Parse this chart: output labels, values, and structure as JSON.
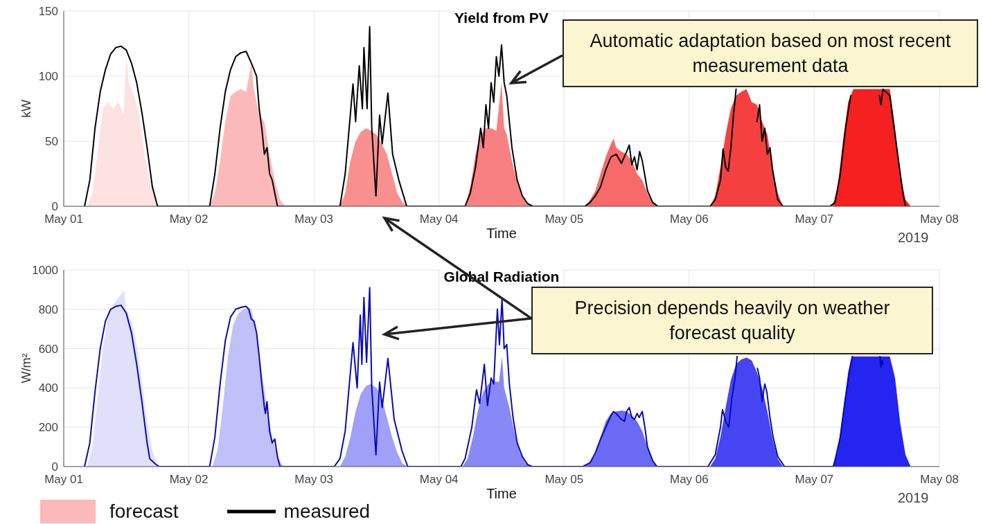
{
  "chart_data": [
    {
      "type": "line",
      "title": "Yield from PV",
      "xlabel": "Time",
      "ylabel": "kW",
      "xlim": [
        "2019-05-01",
        "2019-05-08"
      ],
      "xticks": [
        {
          "value": "2019-05-01",
          "label": "May 01"
        },
        {
          "value": "2019-05-02",
          "label": "May 02"
        },
        {
          "value": "2019-05-03",
          "label": "May 03"
        },
        {
          "value": "2019-05-04",
          "label": "May 04"
        },
        {
          "value": "2019-05-05",
          "label": "May 05"
        },
        {
          "value": "2019-05-06",
          "label": "May 06"
        },
        {
          "value": "2019-05-07",
          "label": "May 07"
        },
        {
          "value": "2019-05-08",
          "label": "May 08"
        }
      ],
      "ylim": [
        0,
        150
      ],
      "yticks": [
        0,
        50,
        100,
        150
      ],
      "grid": true,
      "legend": "bottom left",
      "line_style": "solid",
      "marker": "none",
      "annotations": [
        "2019",
        "Automatic adaptation based on most recent measurement data"
      ],
      "series": [
        {
          "type": "area",
          "color": "#fde2e2",
          "x": [
            "2019-05-01T04:30",
            "2019-05-01T05:30",
            "2019-05-01T06:30",
            "2019-05-01T07:30",
            "2019-05-01T08:30",
            "2019-05-01T09:30",
            "2019-05-01T10:30",
            "2019-05-01T11:30",
            "2019-05-01T12:00",
            "2019-05-01T12:30",
            "2019-05-01T13:30",
            "2019-05-01T14:30",
            "2019-05-01T15:30",
            "2019-05-01T16:30",
            "2019-05-01T17:30",
            "2019-05-01T18:30"
          ],
          "values": [
            0,
            10,
            40,
            75,
            80,
            75,
            80,
            70,
            115,
            95,
            85,
            70,
            40,
            20,
            5,
            0
          ]
        },
        {
          "type": "area",
          "name": "forecast",
          "color": "#fbb9b9",
          "x": [
            "2019-05-02T04:00",
            "2019-05-02T05:00",
            "2019-05-02T06:00",
            "2019-05-02T07:00",
            "2019-05-02T08:00",
            "2019-05-02T09:00",
            "2019-05-02T10:00",
            "2019-05-02T11:00",
            "2019-05-02T12:00",
            "2019-05-02T12:30",
            "2019-05-02T13:30",
            "2019-05-02T14:30",
            "2019-05-02T15:30",
            "2019-05-02T16:30",
            "2019-05-02T17:30",
            "2019-05-02T18:30"
          ],
          "values": [
            0,
            10,
            35,
            65,
            85,
            88,
            90,
            88,
            110,
            90,
            70,
            65,
            40,
            20,
            5,
            0
          ]
        },
        {
          "type": "area",
          "color": "#f99090",
          "x": [
            "2019-05-03T05:00",
            "2019-05-03T06:00",
            "2019-05-03T07:00",
            "2019-05-03T08:00",
            "2019-05-03T09:00",
            "2019-05-03T10:00",
            "2019-05-03T11:00",
            "2019-05-03T12:00",
            "2019-05-03T13:00",
            "2019-05-03T14:00",
            "2019-05-03T15:00",
            "2019-05-03T16:00",
            "2019-05-03T17:00",
            "2019-05-03T18:00"
          ],
          "values": [
            0,
            10,
            35,
            50,
            57,
            60,
            58,
            55,
            48,
            40,
            25,
            10,
            3,
            0
          ]
        },
        {
          "type": "area",
          "color": "#f98080",
          "x": [
            "2019-05-04T05:00",
            "2019-05-04T06:00",
            "2019-05-04T07:00",
            "2019-05-04T08:00",
            "2019-05-04T09:00",
            "2019-05-04T10:00",
            "2019-05-04T11:00",
            "2019-05-04T12:00",
            "2019-05-04T12:30",
            "2019-05-04T13:00",
            "2019-05-04T14:00",
            "2019-05-04T15:00",
            "2019-05-04T16:00",
            "2019-05-04T17:00",
            "2019-05-04T18:00"
          ],
          "values": [
            0,
            15,
            40,
            55,
            60,
            60,
            58,
            95,
            60,
            55,
            35,
            18,
            8,
            3,
            0
          ]
        },
        {
          "type": "area",
          "color": "#f86a6a",
          "x": [
            "2019-05-05T04:00",
            "2019-05-05T05:00",
            "2019-05-05T06:00",
            "2019-05-05T07:00",
            "2019-05-05T08:00",
            "2019-05-05T09:00",
            "2019-05-05T09:30",
            "2019-05-05T10:00",
            "2019-05-05T11:00",
            "2019-05-05T12:00",
            "2019-05-05T13:00",
            "2019-05-05T14:00",
            "2019-05-05T15:00",
            "2019-05-05T16:00",
            "2019-05-05T17:00",
            "2019-05-05T18:00"
          ],
          "values": [
            0,
            5,
            12,
            25,
            38,
            48,
            52,
            45,
            42,
            40,
            35,
            25,
            20,
            10,
            3,
            0
          ]
        },
        {
          "type": "area",
          "color": "#f54040",
          "x": [
            "2019-05-06T04:00",
            "2019-05-06T05:00",
            "2019-05-06T06:00",
            "2019-05-06T07:00",
            "2019-05-06T08:00",
            "2019-05-06T09:00",
            "2019-05-06T10:00",
            "2019-05-06T11:00",
            "2019-05-06T12:00",
            "2019-05-06T13:00",
            "2019-05-06T14:00",
            "2019-05-06T15:00",
            "2019-05-06T16:00",
            "2019-05-06T17:00",
            "2019-05-06T18:00"
          ],
          "values": [
            0,
            8,
            30,
            55,
            75,
            85,
            88,
            90,
            80,
            78,
            65,
            55,
            30,
            10,
            0
          ]
        },
        {
          "type": "area",
          "color": "#f52020",
          "x": [
            "2019-05-07T03:30",
            "2019-05-07T04:30",
            "2019-05-07T05:30",
            "2019-05-07T06:30",
            "2019-05-07T07:30",
            "2019-05-07T08:30",
            "2019-05-07T13:30",
            "2019-05-07T14:30",
            "2019-05-07T15:30",
            "2019-05-07T16:30",
            "2019-05-07T17:30",
            "2019-05-07T18:30"
          ],
          "values": [
            0,
            15,
            50,
            80,
            90,
            90,
            90,
            90,
            60,
            25,
            5,
            0
          ]
        },
        {
          "name": "measured",
          "color": "#000000",
          "x": [
            "2019-05-01T04:00",
            "2019-05-01T05:00",
            "2019-05-01T06:00",
            "2019-05-01T07:00",
            "2019-05-01T08:00",
            "2019-05-01T09:00",
            "2019-05-01T10:00",
            "2019-05-01T11:00",
            "2019-05-01T12:00",
            "2019-05-01T13:00",
            "2019-05-01T14:00",
            "2019-05-01T15:00",
            "2019-05-01T16:00",
            "2019-05-01T17:00",
            "2019-05-01T18:00",
            "2019-05-02T04:00",
            "2019-05-02T05:00",
            "2019-05-02T06:00",
            "2019-05-02T07:00",
            "2019-05-02T08:00",
            "2019-05-02T09:00",
            "2019-05-02T10:00",
            "2019-05-02T11:00",
            "2019-05-02T12:00",
            "2019-05-02T13:00",
            "2019-05-02T13:30",
            "2019-05-02T14:00",
            "2019-05-02T14:30",
            "2019-05-02T15:00",
            "2019-05-02T15:30",
            "2019-05-02T16:00",
            "2019-05-02T17:00",
            "2019-05-03T05:00",
            "2019-05-03T06:00",
            "2019-05-03T07:30",
            "2019-05-03T08:00",
            "2019-05-03T08:42",
            "2019-05-03T09:18",
            "2019-05-03T09:36",
            "2019-05-03T10:12",
            "2019-05-03T10:42",
            "2019-05-03T11:06",
            "2019-05-03T11:54",
            "2019-05-03T12:36",
            "2019-05-03T13:06",
            "2019-05-03T14:12",
            "2019-05-03T15:06",
            "2019-05-03T16:18",
            "2019-05-03T17:48",
            "2019-05-04T05:00",
            "2019-05-04T06:00",
            "2019-05-04T07:00",
            "2019-05-04T07:30",
            "2019-05-04T08:00",
            "2019-05-04T08:30",
            "2019-05-04T09:00",
            "2019-05-04T09:30",
            "2019-05-04T10:00",
            "2019-05-04T10:30",
            "2019-05-04T11:00",
            "2019-05-04T11:30",
            "2019-05-04T12:00",
            "2019-05-04T12:30",
            "2019-05-04T13:00",
            "2019-05-04T14:00",
            "2019-05-04T15:00",
            "2019-05-04T16:00",
            "2019-05-04T17:00",
            "2019-05-04T18:00",
            "2019-05-05T04:00",
            "2019-05-05T05:00",
            "2019-05-05T06:00",
            "2019-05-05T07:00",
            "2019-05-05T08:00",
            "2019-05-05T09:00",
            "2019-05-05T10:00",
            "2019-05-05T11:00",
            "2019-05-05T12:00",
            "2019-05-05T12:30",
            "2019-05-05T13:00",
            "2019-05-05T13:30",
            "2019-05-05T14:00",
            "2019-05-05T14:30",
            "2019-05-05T15:00",
            "2019-05-05T16:00",
            "2019-05-05T17:00",
            "2019-05-05T18:00",
            "2019-05-06T04:00",
            "2019-05-06T05:00",
            "2019-05-06T06:00",
            "2019-05-06T06:30",
            "2019-05-06T07:00",
            "2019-05-06T07:30",
            "2019-05-06T08:00",
            "2019-05-06T08:30",
            "2019-05-06T09:00",
            "2019-05-06T10:00",
            "2019-05-06T12:00",
            "2019-05-06T13:00",
            "2019-05-06T13:30",
            "2019-05-06T14:00",
            "2019-05-06T14:30",
            "2019-05-06T15:00",
            "2019-05-06T15:30",
            "2019-05-06T16:00",
            "2019-05-06T17:00",
            "2019-05-06T18:00",
            "2019-05-07T03:00",
            "2019-05-07T04:00",
            "2019-05-07T05:00",
            "2019-05-07T06:00",
            "2019-05-07T07:00",
            "2019-05-07T08:00",
            "2019-05-07T12:00",
            "2019-05-07T12:30",
            "2019-05-07T12:48",
            "2019-05-07T13:12",
            "2019-05-07T14:30",
            "2019-05-07T15:00",
            "2019-05-07T16:00",
            "2019-05-07T17:00",
            "2019-05-07T17:30"
          ],
          "values": [
            0,
            20,
            60,
            88,
            105,
            117,
            122,
            123,
            120,
            110,
            95,
            72,
            45,
            15,
            0,
            0,
            25,
            60,
            88,
            105,
            115,
            118,
            119,
            110,
            100,
            75,
            60,
            40,
            45,
            25,
            20,
            0,
            0,
            25,
            94,
            65,
            108,
            75,
            122,
            75,
            138,
            60,
            8,
            70,
            48,
            87,
            40,
            20,
            0,
            0,
            10,
            30,
            45,
            60,
            45,
            78,
            60,
            95,
            80,
            115,
            100,
            124,
            95,
            85,
            45,
            20,
            8,
            2,
            0,
            0,
            3,
            8,
            15,
            28,
            38,
            40,
            33,
            42,
            47,
            32,
            38,
            28,
            42,
            35,
            12,
            3,
            0,
            0,
            5,
            20,
            44,
            30,
            27,
            45,
            70,
            90,
            null,
            null,
            65,
            78,
            50,
            60,
            40,
            45,
            28,
            5,
            0,
            0,
            3,
            25,
            60,
            85,
            null,
            null,
            85,
            78,
            90,
            85,
            70,
            40,
            10,
            0
          ]
        }
      ]
    },
    {
      "type": "line",
      "title": "Global Radiation",
      "xlabel": "Time",
      "ylabel": "W/m²",
      "xlim": [
        "2019-05-01",
        "2019-05-08"
      ],
      "xticks": [
        {
          "value": "2019-05-01",
          "label": "May 01"
        },
        {
          "value": "2019-05-02",
          "label": "May 02"
        },
        {
          "value": "2019-05-03",
          "label": "May 03"
        },
        {
          "value": "2019-05-04",
          "label": "May 04"
        },
        {
          "value": "2019-05-05",
          "label": "May 05"
        },
        {
          "value": "2019-05-06",
          "label": "May 06"
        },
        {
          "value": "2019-05-07",
          "label": "May 07"
        },
        {
          "value": "2019-05-08",
          "label": "May 08"
        }
      ],
      "ylim": [
        0,
        1000
      ],
      "yticks": [
        0,
        200,
        400,
        600,
        800,
        1000
      ],
      "grid": true,
      "line_style": "solid",
      "marker": "none",
      "annotations": [
        "2019",
        "Precision depends heavily on weather forecast quality"
      ],
      "series": [
        {
          "type": "area",
          "color": "#e0e0fb",
          "x": [
            "2019-05-01T04:30",
            "2019-05-01T05:30",
            "2019-05-01T06:30",
            "2019-05-01T07:30",
            "2019-05-01T08:30",
            "2019-05-01T09:30",
            "2019-05-01T10:30",
            "2019-05-01T11:12",
            "2019-05-01T11:30",
            "2019-05-01T12:00",
            "2019-05-01T13:00",
            "2019-05-01T14:00",
            "2019-05-01T15:00",
            "2019-05-01T16:00",
            "2019-05-01T17:00",
            "2019-05-01T18:00",
            "2019-05-01T18:30"
          ],
          "values": [
            0,
            100,
            350,
            600,
            760,
            820,
            860,
            880,
            900,
            800,
            740,
            620,
            430,
            230,
            80,
            10,
            0
          ]
        },
        {
          "type": "area",
          "color": "#c0c0fa",
          "x": [
            "2019-05-02T04:30",
            "2019-05-02T05:30",
            "2019-05-02T06:30",
            "2019-05-02T07:30",
            "2019-05-02T08:30",
            "2019-05-02T09:30",
            "2019-05-02T10:30",
            "2019-05-02T11:30",
            "2019-05-02T12:00",
            "2019-05-02T13:00",
            "2019-05-02T14:00",
            "2019-05-02T15:00",
            "2019-05-02T16:00",
            "2019-05-02T17:00",
            "2019-05-02T18:00",
            "2019-05-02T18:30"
          ],
          "values": [
            0,
            80,
            300,
            560,
            720,
            780,
            800,
            810,
            800,
            680,
            480,
            300,
            150,
            50,
            5,
            0
          ]
        },
        {
          "type": "area",
          "color": "#a0a0f8",
          "x": [
            "2019-05-03T05:00",
            "2019-05-03T06:00",
            "2019-05-03T07:00",
            "2019-05-03T08:00",
            "2019-05-03T09:00",
            "2019-05-03T10:00",
            "2019-05-03T11:00",
            "2019-05-03T12:00",
            "2019-05-03T13:00",
            "2019-05-03T14:00",
            "2019-05-03T15:00",
            "2019-05-03T16:00",
            "2019-05-03T17:00",
            "2019-05-03T18:00"
          ],
          "values": [
            0,
            50,
            150,
            280,
            370,
            410,
            420,
            400,
            350,
            250,
            150,
            70,
            15,
            0
          ]
        },
        {
          "type": "area",
          "color": "#8888f7",
          "x": [
            "2019-05-04T04:30",
            "2019-05-04T05:30",
            "2019-05-04T06:30",
            "2019-05-04T07:30",
            "2019-05-04T08:30",
            "2019-05-04T09:30",
            "2019-05-04T10:30",
            "2019-05-04T11:30",
            "2019-05-04T12:06",
            "2019-05-04T12:30",
            "2019-05-04T13:30",
            "2019-05-04T14:30",
            "2019-05-04T15:30",
            "2019-05-04T16:30",
            "2019-05-04T17:30"
          ],
          "values": [
            0,
            40,
            150,
            290,
            380,
            420,
            435,
            430,
            560,
            400,
            300,
            170,
            70,
            20,
            0
          ]
        },
        {
          "type": "area",
          "color": "#6a6af5",
          "x": [
            "2019-05-05T04:00",
            "2019-05-05T05:00",
            "2019-05-05T06:00",
            "2019-05-05T07:00",
            "2019-05-05T08:00",
            "2019-05-05T09:00",
            "2019-05-05T10:00",
            "2019-05-05T11:00",
            "2019-05-05T12:00",
            "2019-05-05T13:00",
            "2019-05-05T14:00",
            "2019-05-05T15:00",
            "2019-05-05T16:00",
            "2019-05-05T17:00",
            "2019-05-05T18:00"
          ],
          "values": [
            0,
            20,
            70,
            150,
            230,
            270,
            280,
            285,
            280,
            260,
            230,
            180,
            100,
            30,
            0
          ]
        },
        {
          "type": "area",
          "color": "#4545f3",
          "x": [
            "2019-05-06T04:00",
            "2019-05-06T05:00",
            "2019-05-06T06:00",
            "2019-05-06T07:00",
            "2019-05-06T08:00",
            "2019-05-06T09:00",
            "2019-05-06T10:00",
            "2019-05-06T11:00",
            "2019-05-06T12:00",
            "2019-05-06T13:00",
            "2019-05-06T14:00",
            "2019-05-06T15:00",
            "2019-05-06T16:00",
            "2019-05-06T17:00",
            "2019-05-06T18:00"
          ],
          "values": [
            0,
            40,
            150,
            300,
            440,
            520,
            545,
            555,
            540,
            480,
            400,
            280,
            140,
            40,
            0
          ]
        },
        {
          "type": "area",
          "color": "#2525f2",
          "x": [
            "2019-05-07T03:30",
            "2019-05-07T04:30",
            "2019-05-07T05:30",
            "2019-05-07T06:30",
            "2019-05-07T07:12",
            "2019-05-07T08:00",
            "2019-05-07T14:30",
            "2019-05-07T15:30",
            "2019-05-07T16:30",
            "2019-05-07T17:30",
            "2019-05-07T18:30"
          ],
          "values": [
            0,
            80,
            280,
            480,
            560,
            560,
            560,
            450,
            220,
            60,
            0
          ]
        },
        {
          "color": "#0a0ab4",
          "x": [
            "2019-05-01T04:00",
            "2019-05-01T05:00",
            "2019-05-01T06:00",
            "2019-05-01T07:00",
            "2019-05-01T08:00",
            "2019-05-01T09:00",
            "2019-05-01T10:00",
            "2019-05-01T11:00",
            "2019-05-01T12:00",
            "2019-05-01T13:00",
            "2019-05-01T14:00",
            "2019-05-01T15:00",
            "2019-05-01T16:00",
            "2019-05-01T16:30",
            "2019-05-01T17:30",
            "2019-05-01T18:18",
            "2019-05-02T04:00",
            "2019-05-02T05:00",
            "2019-05-02T06:00",
            "2019-05-02T07:00",
            "2019-05-02T08:00",
            "2019-05-02T09:00",
            "2019-05-02T10:00",
            "2019-05-02T11:00",
            "2019-05-02T11:30",
            "2019-05-02T12:00",
            "2019-05-02T12:30",
            "2019-05-02T13:00",
            "2019-05-02T13:30",
            "2019-05-02T14:00",
            "2019-05-02T14:30",
            "2019-05-02T14:42",
            "2019-05-02T15:00",
            "2019-05-02T15:30",
            "2019-05-02T16:00",
            "2019-05-02T16:30",
            "2019-05-02T17:00",
            "2019-05-02T17:30",
            "2019-05-03T03:54",
            "2019-05-03T05:00",
            "2019-05-03T06:00",
            "2019-05-03T07:30",
            "2019-05-03T08:18",
            "2019-05-03T08:54",
            "2019-05-03T09:12",
            "2019-05-03T09:36",
            "2019-05-03T10:06",
            "2019-05-03T10:42",
            "2019-05-03T11:06",
            "2019-05-03T11:54",
            "2019-05-03T12:36",
            "2019-05-03T13:06",
            "2019-05-03T14:12",
            "2019-05-03T15:24",
            "2019-05-03T16:54",
            "2019-05-03T18:00",
            "2019-05-04T04:12",
            "2019-05-04T05:00",
            "2019-05-04T06:18",
            "2019-05-04T07:12",
            "2019-05-04T07:48",
            "2019-05-04T08:42",
            "2019-05-04T09:18",
            "2019-05-04T10:00",
            "2019-05-04T10:30",
            "2019-05-04T11:12",
            "2019-05-04T11:36",
            "2019-05-04T12:06",
            "2019-05-04T12:30",
            "2019-05-04T13:00",
            "2019-05-04T13:30",
            "2019-05-04T14:12",
            "2019-05-04T15:00",
            "2019-05-04T16:00",
            "2019-05-04T17:00",
            "2019-05-04T17:54",
            "2019-05-05T03:36",
            "2019-05-05T05:00",
            "2019-05-05T06:00",
            "2019-05-05T07:00",
            "2019-05-05T08:00",
            "2019-05-05T09:00",
            "2019-05-05T09:30",
            "2019-05-05T10:00",
            "2019-05-05T11:00",
            "2019-05-05T11:36",
            "2019-05-05T12:00",
            "2019-05-05T12:30",
            "2019-05-05T13:00",
            "2019-05-05T13:30",
            "2019-05-05T14:00",
            "2019-05-05T14:24",
            "2019-05-05T15:00",
            "2019-05-05T15:30",
            "2019-05-05T16:00",
            "2019-05-05T17:00",
            "2019-05-05T17:48",
            "2019-05-06T03:36",
            "2019-05-06T05:00",
            "2019-05-06T06:00",
            "2019-05-06T06:24",
            "2019-05-06T07:00",
            "2019-05-06T07:36",
            "2019-05-06T08:12",
            "2019-05-06T08:48",
            "2019-05-06T09:12",
            "2019-05-06T10:00",
            "2019-05-06T11:42",
            "2019-05-06T11:48",
            "2019-05-06T11:54",
            "2019-05-06T12:30",
            "2019-05-06T13:06",
            "2019-05-06T13:30",
            "2019-05-06T14:00",
            "2019-05-06T14:30",
            "2019-05-06T14:54",
            "2019-05-06T15:30",
            "2019-05-06T16:06",
            "2019-05-06T17:00",
            "2019-05-06T18:18",
            "2019-05-07T03:42",
            "2019-05-07T05:00",
            "2019-05-07T06:00",
            "2019-05-07T07:00",
            "2019-05-07T07:18",
            "2019-05-07T08:00",
            "2019-05-07T12:36",
            "2019-05-07T12:48",
            "2019-05-07T13:00",
            "2019-05-07T13:12"
          ],
          "values": [
            0,
            120,
            380,
            600,
            740,
            800,
            815,
            820,
            780,
            680,
            520,
            330,
            120,
            40,
            15,
            0,
            0,
            150,
            420,
            640,
            760,
            800,
            810,
            815,
            800,
            750,
            740,
            680,
            560,
            420,
            300,
            270,
            330,
            180,
            120,
            140,
            50,
            0,
            0,
            40,
            180,
            630,
            400,
            770,
            520,
            860,
            530,
            910,
            400,
            60,
            430,
            300,
            550,
            240,
            80,
            0,
            0,
            40,
            200,
            390,
            320,
            520,
            310,
            450,
            420,
            800,
            620,
            850,
            600,
            620,
            420,
            250,
            120,
            50,
            10,
            0,
            0,
            20,
            70,
            140,
            200,
            260,
            280,
            270,
            240,
            230,
            280,
            300,
            250,
            240,
            270,
            250,
            280,
            200,
            100,
            30,
            0,
            0,
            60,
            200,
            290,
            230,
            200,
            350,
            450,
            560,
            null,
            null,
            null,
            null,
            null,
            500,
            450,
            330,
            420,
            380,
            250,
            150,
            50,
            0,
            0,
            150,
            350,
            520,
            560,
            null,
            560,
            505,
            540,
            520
          ]
        }
      ]
    }
  ]
}
